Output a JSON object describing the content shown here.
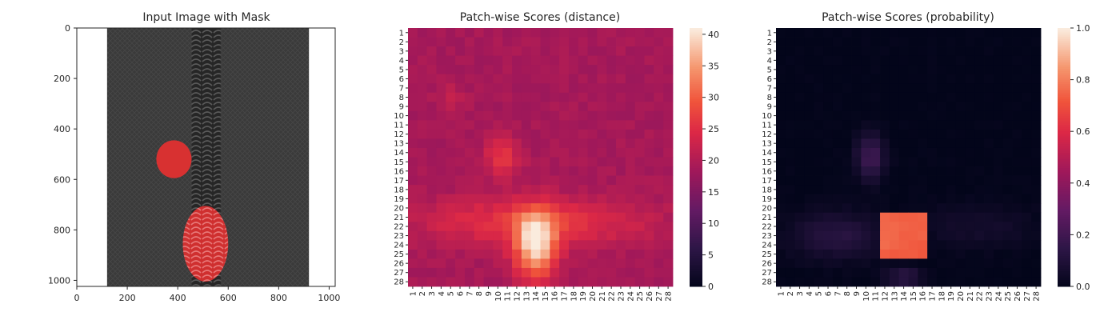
{
  "chart_data": [
    {
      "type": "image",
      "title": "Input Image with Mask",
      "xlim": [
        0,
        1024
      ],
      "ylim": [
        1024,
        0
      ],
      "x_ticks": [
        "0",
        "200",
        "400",
        "600",
        "800",
        "1000"
      ],
      "y_ticks": [
        "0",
        "200",
        "400",
        "600",
        "800",
        "1000"
      ],
      "image_extent": 1024,
      "fabric_x_range": [
        120,
        920
      ],
      "zipper_x_range": [
        455,
        570
      ],
      "zipper_center_x": 510,
      "background_color": "#ffffff",
      "fabric_color": "#3a3a3a",
      "zipper_color": "#262626",
      "mask_color": "#e03030",
      "mask_regions": [
        {
          "name": "upper-defect",
          "center": [
            385,
            520
          ],
          "radius": [
            70,
            75
          ]
        },
        {
          "name": "lower-defect",
          "center": [
            510,
            855
          ],
          "radius": [
            90,
            150
          ]
        }
      ]
    },
    {
      "type": "heatmap",
      "title": "Patch-wise Scores (distance)",
      "x_ticks": [
        "1",
        "2",
        "3",
        "4",
        "5",
        "6",
        "7",
        "8",
        "9",
        "10",
        "11",
        "12",
        "13",
        "14",
        "15",
        "16",
        "17",
        "18",
        "19",
        "20",
        "21",
        "22",
        "23",
        "24",
        "25",
        "26",
        "27",
        "28"
      ],
      "y_ticks": [
        "1",
        "2",
        "3",
        "4",
        "5",
        "6",
        "7",
        "8",
        "9",
        "10",
        "11",
        "12",
        "13",
        "14",
        "15",
        "16",
        "17",
        "18",
        "19",
        "20",
        "21",
        "22",
        "23",
        "24",
        "25",
        "26",
        "27",
        "28"
      ],
      "colorbar_ticks": [
        "0",
        "5",
        "10",
        "15",
        "20",
        "25",
        "30",
        "35",
        "40"
      ],
      "vmin": 0,
      "vmax": 41,
      "colormap": "rocket",
      "base_value": 19,
      "hotspots": [
        {
          "center": [
            14,
            24
          ],
          "radius": [
            2.2,
            3.5
          ],
          "value": 21
        },
        {
          "center": [
            10,
            21.5
          ],
          "radius": [
            9,
            2.5
          ],
          "value": 6
        },
        {
          "center": [
            20,
            21.5
          ],
          "radius": [
            8,
            2.5
          ],
          "value": 4
        },
        {
          "center": [
            10.5,
            14.5
          ],
          "radius": [
            1.8,
            2.2
          ],
          "value": 7
        },
        {
          "center": [
            5,
            8
          ],
          "radius": [
            1.5,
            1.2
          ],
          "value": 3
        }
      ]
    },
    {
      "type": "heatmap",
      "title": "Patch-wise Scores (probability)",
      "x_ticks": [
        "1",
        "2",
        "3",
        "4",
        "5",
        "6",
        "7",
        "8",
        "9",
        "10",
        "11",
        "12",
        "13",
        "14",
        "15",
        "16",
        "17",
        "18",
        "19",
        "20",
        "21",
        "22",
        "23",
        "24",
        "25",
        "26",
        "27",
        "28"
      ],
      "y_ticks": [
        "1",
        "2",
        "3",
        "4",
        "5",
        "6",
        "7",
        "8",
        "9",
        "10",
        "11",
        "12",
        "13",
        "14",
        "15",
        "16",
        "17",
        "18",
        "19",
        "20",
        "21",
        "22",
        "23",
        "24",
        "25",
        "26",
        "27",
        "28"
      ],
      "colorbar_ticks": [
        "0.0",
        "0.2",
        "0.4",
        "0.6",
        "0.8",
        "1.0"
      ],
      "vmin": 0,
      "vmax": 1,
      "colormap": "rocket",
      "base_value": 0,
      "hot_block": {
        "cols": [
          12,
          16
        ],
        "rows": [
          21,
          25
        ],
        "value": 0.72
      },
      "hotspots": [
        {
          "center": [
            14,
            27.5
          ],
          "radius": [
            2,
            1
          ],
          "value": 0.15
        },
        {
          "center": [
            10.5,
            14.5
          ],
          "radius": [
            1.5,
            2.5
          ],
          "value": 0.2
        },
        {
          "center": [
            7,
            23
          ],
          "radius": [
            5,
            2.5
          ],
          "value": 0.13
        },
        {
          "center": [
            22,
            22
          ],
          "radius": [
            6,
            2.5
          ],
          "value": 0.06
        }
      ]
    }
  ]
}
